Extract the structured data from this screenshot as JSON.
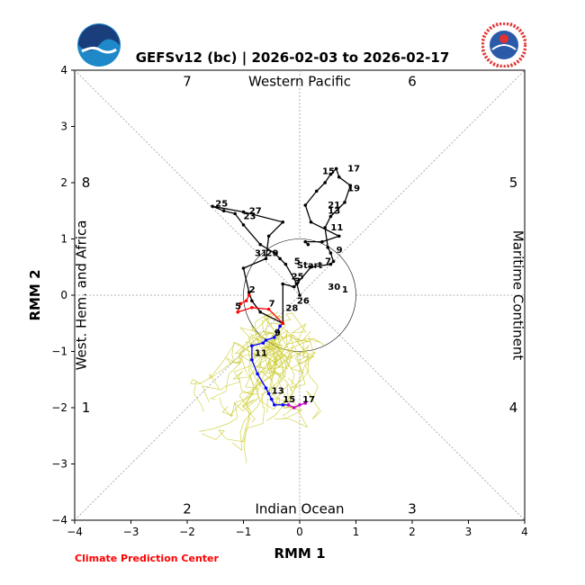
{
  "credit": "Climate Prediction Center",
  "logos": {
    "left": "NOAA",
    "right_ring_text": "NATIONAL WEATHER SERVICE"
  },
  "chart_data": {
    "type": "line",
    "title": "GEFSv12 (bc) | 2026-02-03 to 2026-02-17",
    "xlabel": "RMM 1",
    "ylabel": "RMM 2",
    "xlim": [
      -4,
      4
    ],
    "ylim": [
      -4,
      4
    ],
    "xticks": [
      "−4",
      "−3",
      "−2",
      "−1",
      "0",
      "1",
      "2",
      "3",
      "4"
    ],
    "yticks": [
      "−4",
      "−3",
      "−2",
      "−1",
      "0",
      "1",
      "2",
      "3",
      "4"
    ],
    "grid": false,
    "phase_numbers": [
      {
        "label": "1",
        "x": -3.8,
        "y": -2.0
      },
      {
        "label": "2",
        "x": -2.0,
        "y": -3.8
      },
      {
        "label": "3",
        "x": 2.0,
        "y": -3.8
      },
      {
        "label": "4",
        "x": 3.8,
        "y": -2.0
      },
      {
        "label": "5",
        "x": 3.8,
        "y": 2.0
      },
      {
        "label": "6",
        "x": 2.0,
        "y": 3.8
      },
      {
        "label": "7",
        "x": -2.0,
        "y": 3.8
      },
      {
        "label": "8",
        "x": -3.8,
        "y": 2.0
      }
    ],
    "region_labels": {
      "top": "Western Pacific",
      "bottom": "Indian Ocean",
      "left": "West. Hem. and Africa",
      "right": "Maritime Continent"
    },
    "colors": {
      "observed": "#000000",
      "forecast_red": "#ff0000",
      "forecast_blue": "#0000ff",
      "forecast_magenta": "#cc00cc",
      "ensemble": "#cccc33",
      "guide": "#999999"
    },
    "series": [
      {
        "color": "#000000",
        "x": [
          0.0,
          -0.05,
          -0.25,
          -0.35,
          -0.45,
          -0.7,
          -1.0,
          -1.15,
          -1.35,
          -1.55,
          -1.0,
          -0.3,
          -0.55,
          -0.6,
          -1.0,
          -0.9,
          -0.85,
          -0.7,
          -0.3,
          -0.3,
          -0.1,
          0.2,
          0.55,
          0.6,
          0.55,
          0.5,
          0.45,
          0.55,
          0.8,
          0.9,
          0.7,
          0.65,
          0.55,
          0.45,
          0.3,
          0.1,
          0.2,
          0.7,
          0.4,
          0.1,
          0.15
        ],
        "y": [
          0.0,
          0.2,
          0.55,
          0.65,
          0.75,
          0.9,
          1.25,
          1.45,
          1.5,
          1.58,
          1.48,
          1.3,
          1.05,
          0.65,
          0.48,
          0.05,
          -0.1,
          -0.3,
          -0.5,
          0.2,
          0.15,
          0.5,
          0.55,
          0.6,
          0.75,
          0.85,
          1.2,
          1.4,
          1.65,
          1.95,
          2.1,
          2.25,
          2.15,
          2.0,
          1.85,
          1.6,
          1.3,
          1.05,
          0.95,
          0.95,
          0.9
        ],
        "labels": [
          {
            "text": "Start",
            "x": -0.05,
            "y": 0.48
          },
          {
            "text": "1",
            "x": 0.75,
            "y": 0.05
          },
          {
            "text": "2",
            "x": -0.9,
            "y": 0.05
          },
          {
            "text": "3",
            "x": -0.1,
            "y": 0.2
          },
          {
            "text": "5",
            "x": -0.1,
            "y": 0.55
          },
          {
            "text": "7",
            "x": 0.45,
            "y": 0.55
          },
          {
            "text": "9",
            "x": 0.65,
            "y": 0.75
          },
          {
            "text": "11",
            "x": 0.55,
            "y": 1.15
          },
          {
            "text": "13",
            "x": 0.5,
            "y": 1.45
          },
          {
            "text": "15",
            "x": 0.4,
            "y": 2.15
          },
          {
            "text": "17",
            "x": 0.85,
            "y": 2.2
          },
          {
            "text": "19",
            "x": 0.85,
            "y": 1.85
          },
          {
            "text": "21",
            "x": 0.5,
            "y": 1.55
          },
          {
            "text": "23",
            "x": -1.0,
            "y": 1.35
          },
          {
            "text": "25",
            "x": -1.5,
            "y": 1.58
          },
          {
            "text": "27",
            "x": -0.9,
            "y": 1.45
          },
          {
            "text": "29",
            "x": -0.6,
            "y": 0.7
          },
          {
            "text": "31",
            "x": -0.8,
            "y": 0.7
          },
          {
            "text": "25",
            "x": -0.15,
            "y": 0.28
          },
          {
            "text": "26",
            "x": -0.05,
            "y": -0.15
          },
          {
            "text": "28",
            "x": -0.25,
            "y": -0.28
          },
          {
            "text": "30",
            "x": 0.5,
            "y": 0.1
          }
        ]
      },
      {
        "color": "#ff0000",
        "x": [
          -0.9,
          -0.95,
          -1.05,
          -1.1,
          -0.85,
          -0.55,
          -0.3,
          -0.35
        ],
        "y": [
          0.0,
          -0.1,
          -0.15,
          -0.3,
          -0.22,
          -0.25,
          -0.5,
          -0.55
        ],
        "labels": [
          {
            "text": "5",
            "x": -1.15,
            "y": -0.25
          },
          {
            "text": "7",
            "x": -0.55,
            "y": -0.2
          }
        ]
      },
      {
        "color": "#0000ff",
        "x": [
          -0.35,
          -0.45,
          -0.6,
          -0.65,
          -0.85,
          -0.85,
          -0.75,
          -0.6,
          -0.55,
          -0.5,
          -0.45,
          -0.3,
          -0.2
        ],
        "y": [
          -0.55,
          -0.75,
          -0.8,
          -0.85,
          -0.9,
          -1.15,
          -1.4,
          -1.65,
          -1.75,
          -1.85,
          -1.95,
          -1.95,
          -1.95
        ],
        "labels": [
          {
            "text": "9",
            "x": -0.45,
            "y": -0.72
          },
          {
            "text": "11",
            "x": -0.8,
            "y": -1.08
          },
          {
            "text": "13",
            "x": -0.5,
            "y": -1.75
          },
          {
            "text": "15",
            "x": -0.3,
            "y": -1.9
          }
        ]
      },
      {
        "color": "#cc00cc",
        "x": [
          -0.2,
          -0.1,
          0.0,
          0.1
        ],
        "y": [
          -1.95,
          -2.0,
          -1.95,
          -1.92
        ],
        "labels": [
          {
            "text": "17",
            "x": 0.05,
            "y": -1.9
          }
        ]
      }
    ]
  }
}
